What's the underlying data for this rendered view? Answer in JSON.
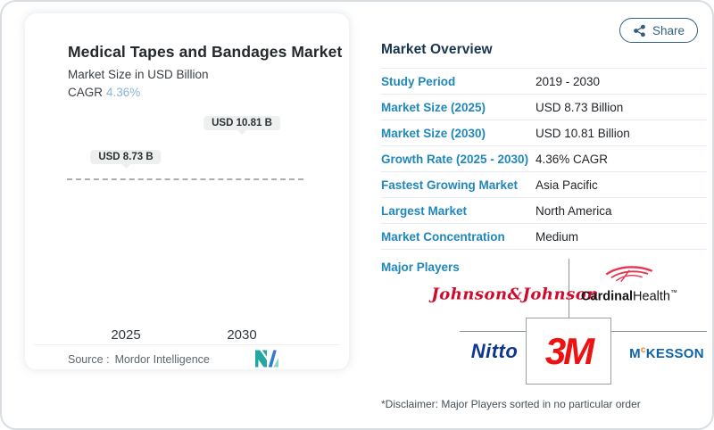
{
  "share": {
    "label": "Share"
  },
  "chart": {
    "title": "Medical Tapes and Bandages Market",
    "subtitle": "Market Size in USD Billion",
    "cagr_label": "CAGR",
    "cagr_value": "4.36%",
    "source_label": "Source :",
    "source_value": "Mordor Intelligence"
  },
  "chart_data": {
    "type": "bar",
    "categories": [
      "2025",
      "2030"
    ],
    "values": [
      8.73,
      10.81
    ],
    "value_labels": [
      "USD 8.73 B",
      "USD 10.81 B"
    ],
    "title": "Medical Tapes and Bandages Market",
    "subtitle": "Market Size in USD Billion",
    "xlabel": "",
    "ylabel": "Market Size in USD Billion",
    "ylim": [
      0,
      10.81
    ],
    "grid": false,
    "legend": "none",
    "annotations": [
      "dashed horizontal reference line at 8.73 (2025 bar top)"
    ],
    "bar_gradient": [
      "#5e96bc",
      "#7ec2c6"
    ]
  },
  "overview": {
    "heading": "Market Overview",
    "rows": [
      {
        "label": "Study Period",
        "value": "2019 - 2030"
      },
      {
        "label": "Market Size (2025)",
        "value": "USD 8.73 Billion"
      },
      {
        "label": "Market Size (2030)",
        "value": "USD 10.81 Billion"
      },
      {
        "label": "Growth Rate (2025 - 2030)",
        "value": "4.36% CAGR"
      },
      {
        "label": "Fastest Growing Market",
        "value": "Asia Pacific"
      },
      {
        "label": "Largest Market",
        "value": "North America"
      },
      {
        "label": "Market Concentration",
        "value": "Medium"
      }
    ],
    "major_players_label": "Major Players",
    "disclaimer": "*Disclaimer: Major Players sorted in no particular order"
  },
  "logos": {
    "jnj": "Johnson&Johnson",
    "cardinal_bold": "Cardinal",
    "cardinal_light": "Health",
    "cardinal_tm": "™",
    "nitto": "Nitto",
    "threem": "3M",
    "mckesson_m": "M",
    "mckesson_c": "c",
    "mckesson_rest": "KESSON"
  },
  "colors": {
    "accent_teal": "#2087ba",
    "heading_navy": "#18344f",
    "bar_top": "#5e96bc",
    "bar_bottom": "#7ec2c6",
    "share_border": "#33607e",
    "jnj_red": "#cf0a2c",
    "threem_red": "#ee1111",
    "nitto_blue": "#0d3692",
    "mckesson_blue": "#0e63a7",
    "mckesson_orange": "#f08021"
  }
}
